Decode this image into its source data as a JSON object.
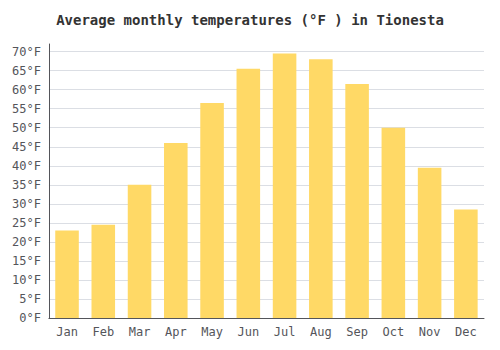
{
  "chart_data": {
    "type": "bar",
    "title": "Average monthly temperatures (°F ) in Tionesta",
    "categories": [
      "Jan",
      "Feb",
      "Mar",
      "Apr",
      "May",
      "Jun",
      "Jul",
      "Aug",
      "Sep",
      "Oct",
      "Nov",
      "Dec"
    ],
    "values": [
      23,
      24.5,
      35,
      46,
      56.5,
      65.5,
      69.5,
      68,
      61.5,
      50,
      39.5,
      28.5
    ],
    "color": "#FFD966",
    "ylim": [
      0,
      72
    ],
    "yticks": [
      {
        "value": 0,
        "label": "0°F"
      },
      {
        "value": 5,
        "label": "5°F"
      },
      {
        "value": 10,
        "label": "10°F"
      },
      {
        "value": 15,
        "label": "15°F"
      },
      {
        "value": 20,
        "label": "20°F"
      },
      {
        "value": 25,
        "label": "25°F"
      },
      {
        "value": 30,
        "label": "30°F"
      },
      {
        "value": 35,
        "label": "35°F"
      },
      {
        "value": 40,
        "label": "40°F"
      },
      {
        "value": 45,
        "label": "45°F"
      },
      {
        "value": 50,
        "label": "50°F"
      },
      {
        "value": 55,
        "label": "55°F"
      },
      {
        "value": 60,
        "label": "60°F"
      },
      {
        "value": 65,
        "label": "65°F"
      },
      {
        "value": 70,
        "label": "70°F"
      }
    ],
    "grid": true
  }
}
